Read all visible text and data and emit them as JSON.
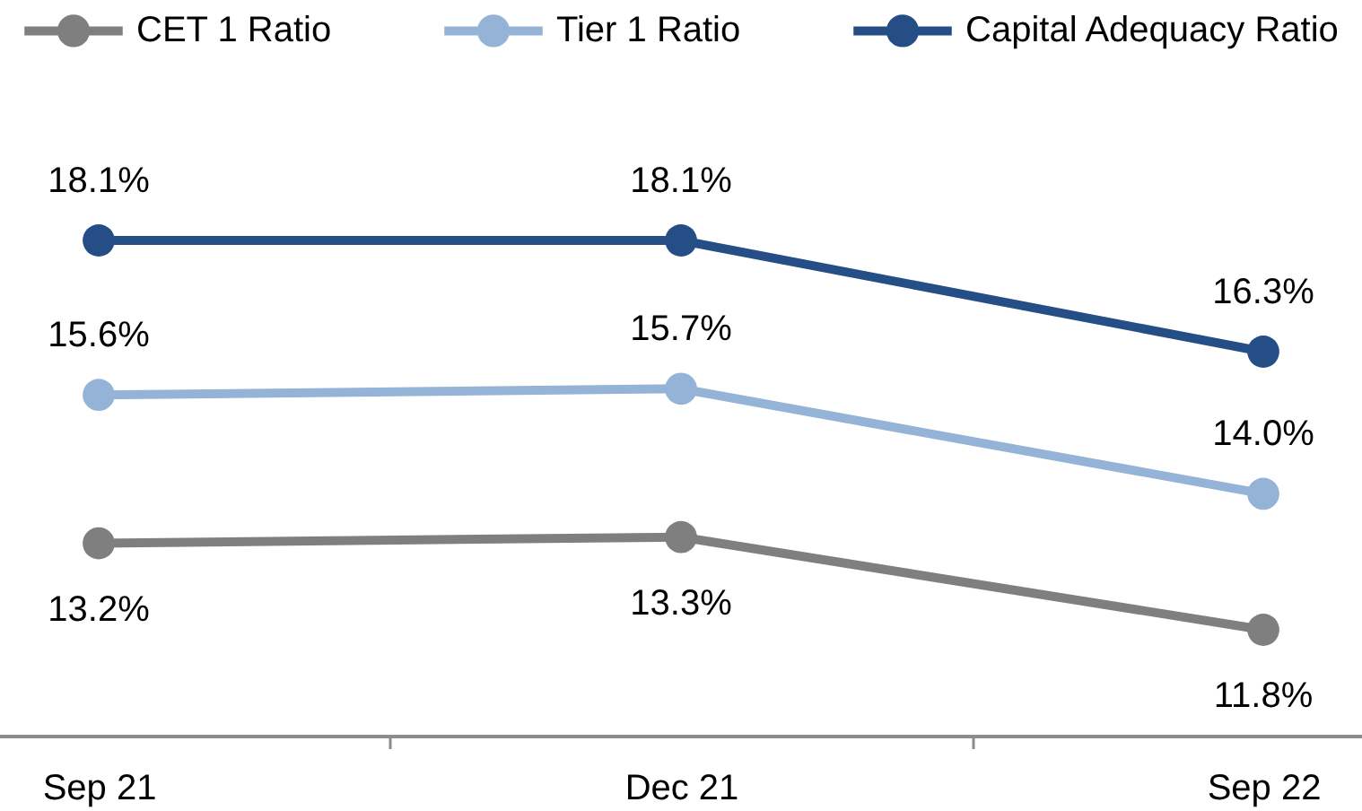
{
  "chart_data": {
    "type": "line",
    "categories": [
      "Sep 21",
      "Dec 21",
      "Sep 22"
    ],
    "series": [
      {
        "name": "CET 1 Ratio",
        "color": "#7f7f7f",
        "values": [
          13.2,
          13.3,
          11.8
        ],
        "value_labels": [
          "13.2%",
          "13.3%",
          "11.8%"
        ]
      },
      {
        "name": "Tier 1 Ratio",
        "color": "#95b3d7",
        "values": [
          15.6,
          15.7,
          14.0
        ],
        "value_labels": [
          "15.6%",
          "15.7%",
          "14.0%"
        ]
      },
      {
        "name": "Capital Adequacy Ratio",
        "color": "#264e86",
        "values": [
          18.1,
          18.1,
          16.3
        ],
        "value_labels": [
          "18.1%",
          "18.1%",
          "16.3%"
        ]
      }
    ],
    "legend": "top",
    "tick_labels": "x",
    "marker": "circle",
    "line_style": "solid"
  }
}
